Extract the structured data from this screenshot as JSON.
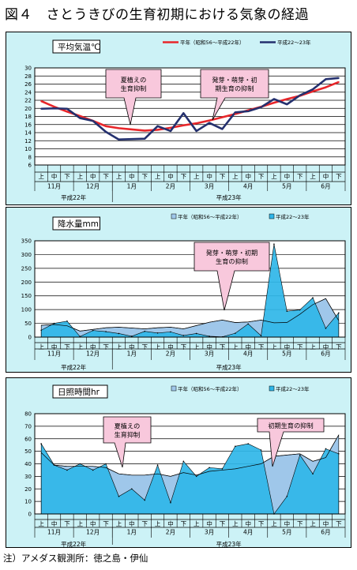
{
  "figure": {
    "title": "図４　さとうきびの生育初期における気象の経過",
    "note": "注）アメダス観測所：徳之島・伊仙"
  },
  "colors": {
    "normal_temp": "#e8262a",
    "recent_temp": "#24306e",
    "normal_fill": "#9fc7ea",
    "recent_fill": "#2fb6e8",
    "panel_bg": "#ccf2f6",
    "callout": "#f8c8dc"
  },
  "axis": {
    "period_labels": [
      "上",
      "中",
      "下",
      "上",
      "中",
      "下",
      "上",
      "中",
      "下",
      "上",
      "中",
      "下",
      "上",
      "中",
      "下",
      "上",
      "中",
      "下",
      "上",
      "中",
      "下",
      "上",
      "中",
      "下"
    ],
    "month_labels": [
      "11月",
      "12月",
      "1月",
      "2月",
      "3月",
      "4月",
      "5月",
      "6月"
    ],
    "year_labels": [
      "平成22年",
      "平成23年"
    ]
  },
  "chart_data": [
    {
      "type": "line",
      "title": "平均気温℃",
      "ylim": [
        6,
        30
      ],
      "yticks": [
        6,
        8,
        10,
        12,
        14,
        16,
        18,
        20,
        22,
        24,
        26,
        28,
        30
      ],
      "grid": true,
      "legend": "top-right",
      "series": [
        {
          "name": "平年（昭和56～平成22年）",
          "values": [
            21.8,
            20.4,
            19.2,
            18.1,
            16.9,
            15.6,
            15.1,
            14.8,
            14.5,
            14.7,
            15.2,
            15.8,
            16.3,
            17.0,
            17.8,
            18.6,
            19.5,
            20.4,
            21.4,
            22.3,
            23.1,
            24.2,
            25.2,
            26.5
          ]
        },
        {
          "name": "平成22～23年",
          "values": [
            19.9,
            20.0,
            19.9,
            17.6,
            16.9,
            14.2,
            12.3,
            12.4,
            12.5,
            15.6,
            14.4,
            18.8,
            14.4,
            16.4,
            14.9,
            19.0,
            19.3,
            20.3,
            22.3,
            21.0,
            23.2,
            24.7,
            27.2,
            27.5
          ]
        }
      ],
      "annotations": [
        {
          "lines": [
            "夏植えの",
            "生育抑制"
          ]
        },
        {
          "lines": [
            "発芽・萌芽・初",
            "期生育の抑制"
          ]
        }
      ]
    },
    {
      "type": "area",
      "title": "降水量mm",
      "ylim": [
        0,
        350
      ],
      "yticks": [
        0,
        50,
        100,
        150,
        200,
        250,
        300,
        350
      ],
      "grid": true,
      "legend": "top-right",
      "series": [
        {
          "name": "平年（昭和56～平成22年）",
          "values": [
            43,
            46,
            41,
            22,
            28,
            34,
            36,
            33,
            30,
            34,
            36,
            30,
            42,
            54,
            62,
            53,
            55,
            62,
            52,
            53,
            83,
            118,
            140,
            60
          ]
        },
        {
          "name": "平成22～23年",
          "values": [
            25,
            50,
            58,
            2,
            24,
            20,
            13,
            3,
            21,
            15,
            19,
            6,
            13,
            3,
            1,
            14,
            48,
            5,
            338,
            94,
            99,
            143,
            32,
            88
          ]
        }
      ],
      "annotations": [
        {
          "lines": [
            "発芽・萌芽・初期",
            "生育の抑制"
          ]
        }
      ]
    },
    {
      "type": "area",
      "title": "日照時間hr",
      "ylim": [
        0,
        80
      ],
      "yticks": [
        0,
        10,
        20,
        30,
        40,
        50,
        60,
        70,
        80
      ],
      "grid": true,
      "legend": "top-right",
      "series": [
        {
          "name": "平年（昭和56～平成22年）",
          "values": [
            49,
            39,
            38,
            38,
            38,
            37,
            32,
            31,
            31,
            32,
            30,
            33,
            31,
            34,
            35,
            36,
            38,
            40,
            46,
            47,
            48,
            42,
            45,
            63
          ]
        },
        {
          "name": "平成22～23年",
          "values": [
            56,
            39,
            35,
            40,
            35,
            40,
            14,
            20,
            11,
            39,
            9,
            42,
            30,
            37,
            36,
            54,
            56,
            51,
            0,
            14,
            47,
            32,
            52,
            48
          ]
        }
      ],
      "annotations": [
        {
          "lines": [
            "夏植えの",
            "生育抑制"
          ]
        },
        {
          "lines": [
            "初期生育の抑制"
          ]
        }
      ]
    }
  ]
}
